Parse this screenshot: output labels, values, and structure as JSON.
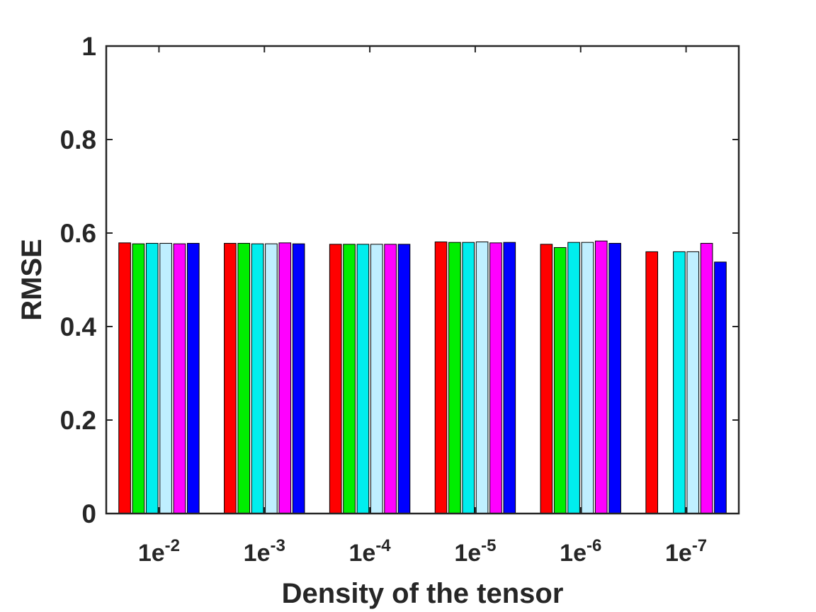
{
  "chart_data": {
    "type": "bar",
    "categories": [
      {
        "base": "1e",
        "exponent": "-2"
      },
      {
        "base": "1e",
        "exponent": "-3"
      },
      {
        "base": "1e",
        "exponent": "-4"
      },
      {
        "base": "1e",
        "exponent": "-5"
      },
      {
        "base": "1e",
        "exponent": "-6"
      },
      {
        "base": "1e",
        "exponent": "-7"
      }
    ],
    "series": [
      {
        "color": "#ff0000",
        "values": [
          0.579,
          0.578,
          0.576,
          0.581,
          0.576,
          0.56
        ]
      },
      {
        "color": "#00ee00",
        "values": [
          0.577,
          0.578,
          0.576,
          0.58,
          0.569,
          null
        ]
      },
      {
        "color": "#00eeee",
        "values": [
          0.578,
          0.577,
          0.576,
          0.58,
          0.58,
          0.56
        ]
      },
      {
        "color": "#bfefff",
        "values": [
          0.578,
          0.577,
          0.576,
          0.581,
          0.58,
          0.56
        ]
      },
      {
        "color": "#ff00ff",
        "values": [
          0.577,
          0.579,
          0.576,
          0.579,
          0.583,
          0.578
        ]
      },
      {
        "color": "#0000ff",
        "values": [
          0.578,
          0.577,
          0.576,
          0.58,
          0.578,
          0.538
        ]
      }
    ],
    "title": "",
    "xlabel": "Density of the tensor",
    "ylabel": "RMSE",
    "ylim": [
      0,
      1
    ],
    "yticks": [
      0,
      0.2,
      0.4,
      0.6,
      0.8,
      1
    ],
    "ytick_labels": [
      "0",
      "0.2",
      "0.4",
      "0.6",
      "0.8",
      "1"
    ],
    "grid": false,
    "legend": "none"
  },
  "colors": {
    "axis": "#262626",
    "bar_edge": "#000000",
    "background": "#ffffff"
  }
}
